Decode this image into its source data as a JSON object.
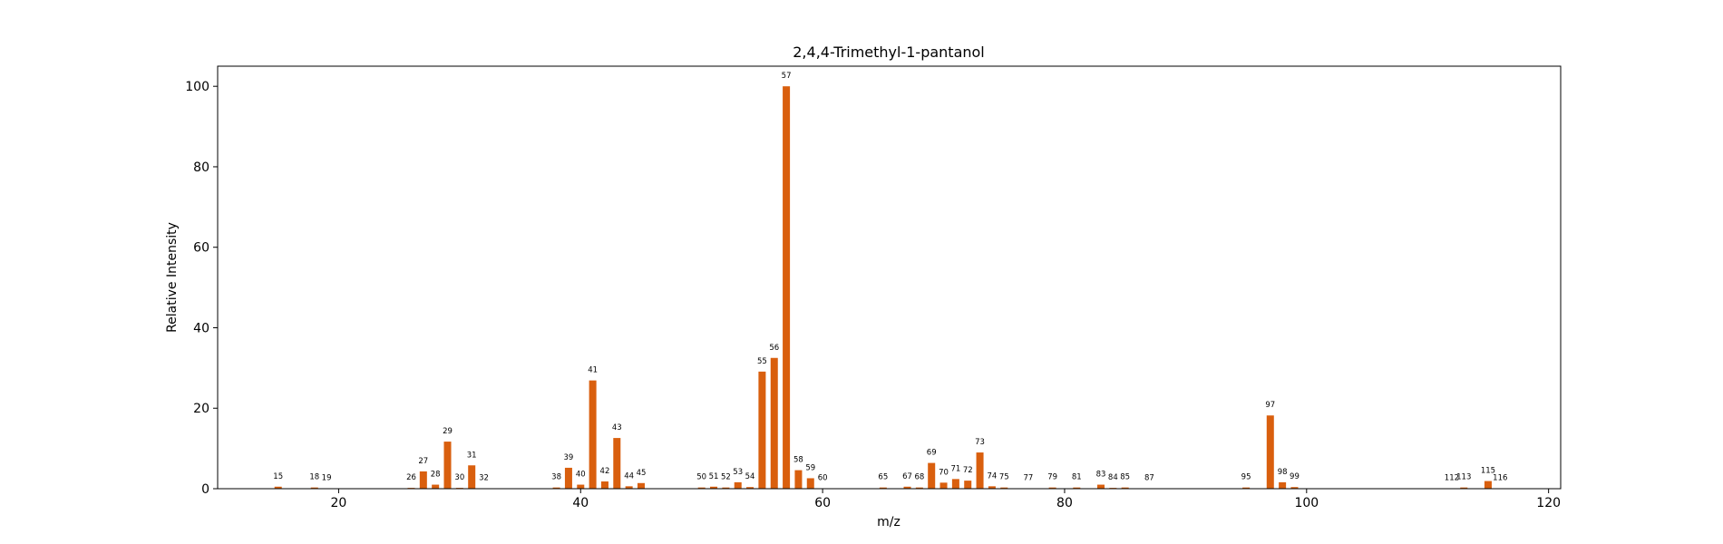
{
  "chart_data": {
    "type": "bar",
    "title": "2,4,4-Trimethyl-1-pantanol",
    "xlabel": "m/z",
    "ylabel": "Relative Intensity",
    "xlim": [
      10,
      121
    ],
    "ylim": [
      0,
      105
    ],
    "xticks": [
      20,
      40,
      60,
      80,
      100,
      120
    ],
    "yticks": [
      0,
      20,
      40,
      60,
      80,
      100
    ],
    "grid": false,
    "bar_color": "#d95f0e",
    "x": [
      15,
      18,
      19,
      26,
      27,
      28,
      29,
      30,
      31,
      32,
      38,
      39,
      40,
      41,
      42,
      43,
      44,
      45,
      50,
      51,
      52,
      53,
      54,
      55,
      56,
      57,
      58,
      59,
      60,
      65,
      67,
      68,
      69,
      70,
      71,
      72,
      73,
      74,
      75,
      77,
      79,
      81,
      83,
      84,
      85,
      87,
      95,
      97,
      98,
      99,
      112,
      113,
      115,
      116
    ],
    "values": [
      0.5,
      0.3,
      0.1,
      0.2,
      4.3,
      1.0,
      11.7,
      0.2,
      5.8,
      0.1,
      0.3,
      5.2,
      1.0,
      26.9,
      1.8,
      12.6,
      0.6,
      1.4,
      0.3,
      0.5,
      0.3,
      1.6,
      0.4,
      29.1,
      32.5,
      100,
      4.6,
      2.6,
      0.1,
      0.3,
      0.5,
      0.3,
      6.4,
      1.5,
      2.4,
      2.0,
      9.0,
      0.6,
      0.3,
      0.1,
      0.3,
      0.3,
      1.0,
      0.2,
      0.3,
      0.1,
      0.3,
      18.2,
      1.6,
      0.4,
      0.1,
      0.3,
      1.9,
      0.1
    ]
  }
}
